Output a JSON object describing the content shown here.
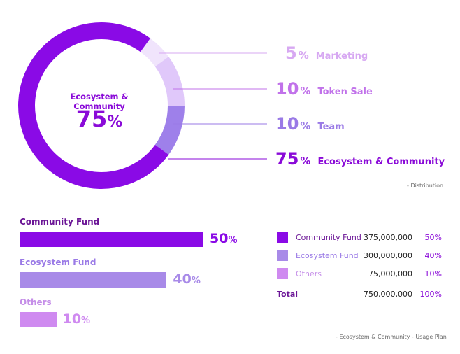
{
  "colors": {
    "ecosystem": "#8a0ae6",
    "team": "#9e80ea",
    "token_sale": "#e0c8fa",
    "marketing": "#f0e4fc",
    "community_fund": "#8a0ae6",
    "ecosystem_fund": "#a88ae8",
    "others": "#cf8af0"
  },
  "chart_data": [
    {
      "type": "pie",
      "variant": "donut",
      "center_label": "Ecosystem & Community",
      "center_value": "75",
      "center_unit": "%",
      "slices": [
        {
          "label": "Marketing",
          "value": 5,
          "value_text": "5",
          "unit": "%",
          "color": "#f0e4fc",
          "text_color": "#d7a8f2"
        },
        {
          "label": "Token Sale",
          "value": 10,
          "value_text": "10",
          "unit": "%",
          "color": "#e0c8fa",
          "text_color": "#c172ea"
        },
        {
          "label": "Team",
          "value": 10,
          "value_text": "10",
          "unit": "%",
          "color": "#9e80ea",
          "text_color": "#9a7ae6"
        },
        {
          "label": "Ecosystem & Community",
          "value": 75,
          "value_text": "75",
          "unit": "%",
          "color": "#8a0ae6",
          "text_color": "#8a0ad8"
        }
      ],
      "caption_dash": "-",
      "caption": "Distribution"
    },
    {
      "type": "bar",
      "orientation": "horizontal",
      "categories": [
        "Community Fund",
        "Ecosystem Fund",
        "Others"
      ],
      "values": [
        50,
        40,
        10
      ],
      "value_texts": [
        "50",
        "40",
        "10"
      ],
      "unit": "%",
      "colors": [
        "#8a0ae6",
        "#a88ae8",
        "#cf8af0"
      ],
      "title_colors": [
        "#6b1596",
        "#9a7ae6",
        "#c58ee8"
      ],
      "xlim": [
        0,
        100
      ]
    },
    {
      "type": "table",
      "rows": [
        {
          "name": "Community Fund",
          "amount": "375,000,000",
          "percent": "50%",
          "color": "#8a0ae6",
          "name_color": "#6b1596"
        },
        {
          "name": "Ecosystem Fund",
          "amount": "300,000,000",
          "percent": "40%",
          "color": "#a88ae8",
          "name_color": "#9a7ae6"
        },
        {
          "name": "Others",
          "amount": "75,000,000",
          "percent": "10%",
          "color": "#cf8af0",
          "name_color": "#c58ee8"
        }
      ],
      "total": {
        "name": "Total",
        "amount": "750,000,000",
        "percent": "100%"
      },
      "caption_part1_dash": "-",
      "caption_part1": "Ecosystem & Community",
      "caption_part2_dash": "-",
      "caption_part2": "Usage Plan"
    }
  ]
}
